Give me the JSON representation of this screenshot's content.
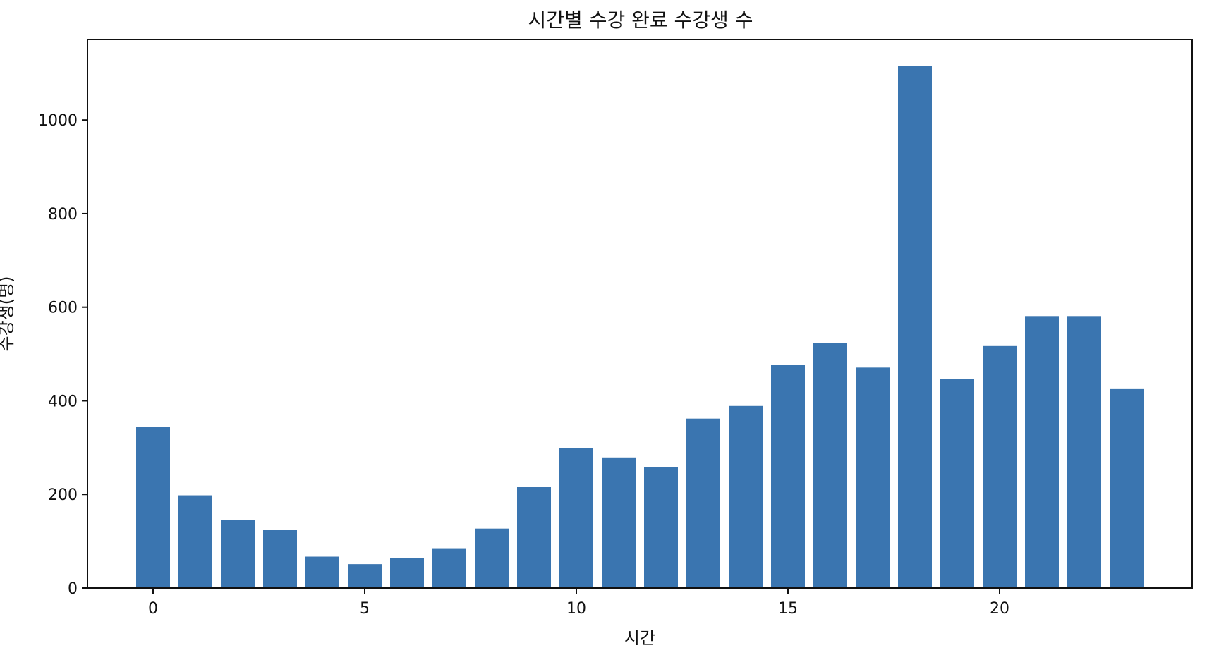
{
  "chart_data": {
    "type": "bar",
    "title": "시간별 수강 완료 수강생 수",
    "xlabel": "시간",
    "ylabel": "수강생(명)",
    "categories": [
      0,
      1,
      2,
      3,
      4,
      5,
      6,
      7,
      8,
      9,
      10,
      11,
      12,
      13,
      14,
      15,
      16,
      17,
      18,
      19,
      20,
      21,
      22,
      23
    ],
    "values": [
      344,
      198,
      146,
      124,
      67,
      51,
      64,
      85,
      127,
      216,
      299,
      279,
      258,
      362,
      389,
      477,
      523,
      471,
      1116,
      447,
      517,
      581,
      581,
      425
    ],
    "xlim": [
      -1.55,
      24.55
    ],
    "ylim": [
      0,
      1172
    ],
    "xticks": [
      0,
      5,
      10,
      15,
      20
    ],
    "xtick_labels": [
      "0",
      "5",
      "10",
      "15",
      "20"
    ],
    "yticks": [
      0,
      200,
      400,
      600,
      800,
      1000
    ],
    "ytick_labels": [
      "0",
      "200",
      "400",
      "600",
      "800",
      "1000"
    ],
    "grid": false,
    "bar_color": "#3a75b0"
  }
}
